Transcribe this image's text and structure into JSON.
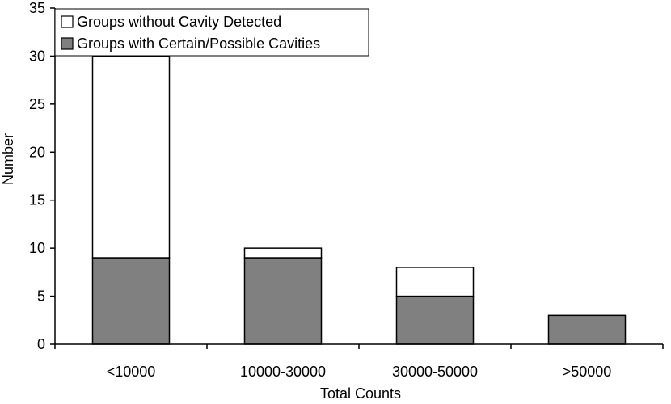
{
  "chart_data": {
    "type": "bar",
    "stacked": true,
    "categories": [
      "<10000",
      "10000-30000",
      "30000-50000",
      ">50000"
    ],
    "series": [
      {
        "name": "Groups with Certain/Possible Cavities",
        "values": [
          9,
          9,
          5,
          3
        ],
        "color": "#808080"
      },
      {
        "name": "Groups without Cavity Detected",
        "values": [
          21,
          1,
          3,
          0
        ],
        "color": "#ffffff"
      }
    ],
    "legend_order": [
      1,
      0
    ],
    "title": "",
    "xlabel": "Total Counts",
    "ylabel": "Number",
    "ylim": [
      0,
      35
    ],
    "yticks": [
      0,
      5,
      10,
      15,
      20,
      25,
      30,
      35
    ],
    "grid": false,
    "legend_position": "top-left"
  }
}
